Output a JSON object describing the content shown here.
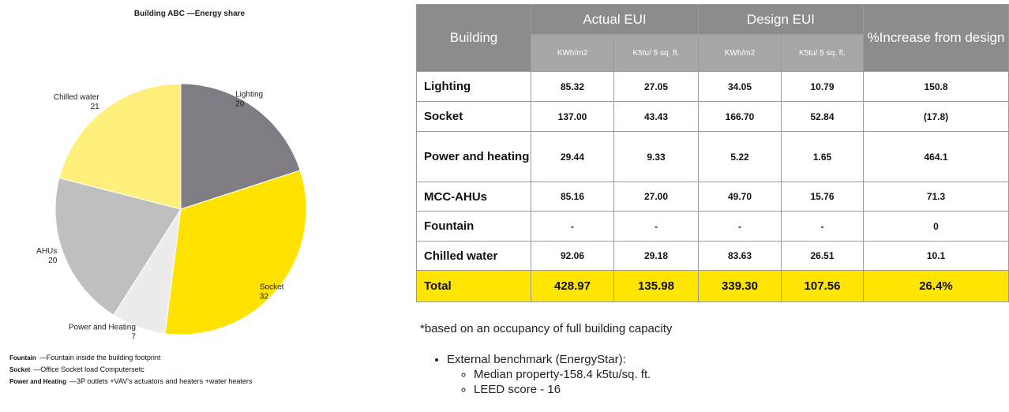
{
  "chart_data": {
    "type": "pie",
    "title": "Building   ABC  —Energy share",
    "categories": [
      "Lighting",
      "Socket",
      "Power and Heating",
      "AHUs",
      "Chilled water"
    ],
    "values": [
      20,
      32,
      7,
      20,
      21
    ],
    "colors": [
      "#7f7c84",
      "#ffe200",
      "#ececec",
      "#bfbfbf",
      "#fff07c"
    ]
  },
  "notes": [
    {
      "term": "Fountain",
      "desc": "—Fountain inside the building footprint"
    },
    {
      "term": "Socket",
      "desc": "—Office Socket load Computersetc"
    },
    {
      "term": "Power and Heating",
      "desc": "—3P outlets +VAV's actuators and heaters +water heaters"
    }
  ],
  "table": {
    "header": [
      "Building",
      "Actual EUI",
      "Design EUI",
      "%Increase  from design"
    ],
    "subheader": [
      "KWh/m2",
      "K5tu/ 5 sq. ft.",
      "KWh/m2",
      "K5tu/ 5 sq. ft."
    ],
    "rows": [
      [
        "Lighting",
        "85.32",
        "27.05",
        "34.05",
        "10.79",
        "150.8"
      ],
      [
        "Socket",
        "137.00",
        "43.43",
        "166.70",
        "52.84",
        "(17.8)"
      ],
      [
        "Power and heating",
        "29.44",
        "9.33",
        "5.22",
        "1.65",
        "464.1"
      ],
      [
        "MCC-AHUs",
        "85.16",
        "27.00",
        "49.70",
        "15.76",
        "71.3"
      ],
      [
        "Fountain",
        "-",
        "-",
        "-",
        "-",
        "0"
      ],
      [
        "Chilled water",
        "92.06",
        "29.18",
        "83.63",
        "26.51",
        "10.1"
      ],
      [
        "Total",
        "428.97",
        "135.98",
        "339.30",
        "107.56",
        "26.4%"
      ]
    ]
  },
  "footnote": "*based on an occupancy of full building capacity",
  "benchmark": {
    "title": "External benchmark (EnergyStar):",
    "items": [
      "Median property-158.4 k5tu/sq. ft.",
      "LEED score - 16"
    ]
  }
}
